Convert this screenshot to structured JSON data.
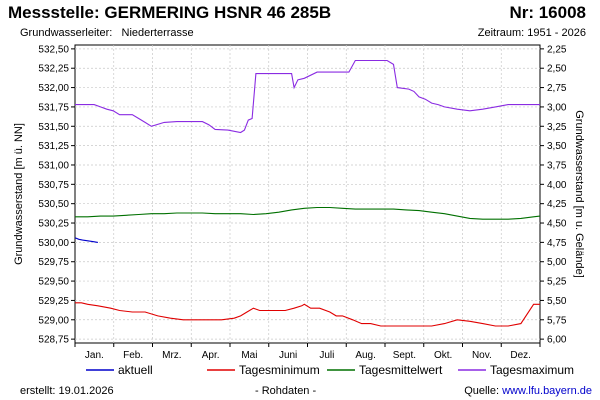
{
  "header": {
    "title": "Messstelle: GERMERING HSNR 46 285B",
    "number": "Nr: 16008",
    "aquifer_label": "Grundwasserleiter:",
    "aquifer_value": "Niederterrasse",
    "period": "Zeitraum: 1951 - 2026"
  },
  "footer": {
    "created": "erstellt:  19.01.2026",
    "note": "- Rohdaten -",
    "source_label": "Quelle:",
    "source_link": "www.lfu.bayern.de"
  },
  "colors": {
    "aktuell": "#0000cc",
    "minimum": "#e00000",
    "mittel": "#007000",
    "maximum": "#8a2be2",
    "grid": "#c8c8c8"
  },
  "chart_data": {
    "type": "line",
    "xlabel": "",
    "ylabel": "Grundwasserstand [m ü. NN]",
    "ylabel_right": "Grundwasserstand [m u. Gelände]",
    "xlim": [
      0,
      365
    ],
    "ylim": [
      528.7,
      532.55
    ],
    "ylim_right": [
      6.05,
      2.2
    ],
    "yticks": [
      "532,50",
      "532,25",
      "532,00",
      "531,75",
      "531,50",
      "531,25",
      "531,00",
      "530,75",
      "530,50",
      "530,25",
      "530,00",
      "529,75",
      "529,50",
      "529,25",
      "529,00",
      "528,75"
    ],
    "yticks_right": [
      "2,25",
      "2,50",
      "2,75",
      "3,00",
      "3,25",
      "3,50",
      "3,75",
      "4,00",
      "4,25",
      "4,50",
      "4,75",
      "5,00",
      "5,25",
      "5,50",
      "5,75",
      "6,00"
    ],
    "months": [
      "Jan.",
      "Feb.",
      "Mrz.",
      "Apr.",
      "Mai",
      "Juni",
      "Juli",
      "Aug.",
      "Sept.",
      "Okt.",
      "Nov.",
      "Dez."
    ],
    "grid": true,
    "legend_position": "bottom",
    "series": [
      {
        "name": "aktuell",
        "x": [
          0,
          3,
          6,
          10,
          14,
          18
        ],
        "y": [
          530.06,
          530.04,
          530.03,
          530.02,
          530.01,
          530.0
        ]
      },
      {
        "name": "Tagesminimum",
        "x": [
          0,
          5,
          10,
          18,
          28,
          35,
          45,
          55,
          65,
          75,
          85,
          95,
          105,
          115,
          125,
          130,
          135,
          140,
          145,
          155,
          165,
          172,
          178,
          180,
          185,
          192,
          200,
          205,
          210,
          218,
          225,
          232,
          240,
          250,
          260,
          270,
          280,
          290,
          300,
          310,
          320,
          330,
          340,
          350,
          360,
          365
        ],
        "y": [
          529.22,
          529.22,
          529.2,
          529.18,
          529.15,
          529.12,
          529.1,
          529.1,
          529.05,
          529.02,
          529.0,
          529.0,
          529.0,
          529.0,
          529.02,
          529.05,
          529.1,
          529.15,
          529.12,
          529.12,
          529.12,
          529.15,
          529.18,
          529.2,
          529.15,
          529.15,
          529.1,
          529.05,
          529.05,
          529.0,
          528.95,
          528.95,
          528.92,
          528.92,
          528.92,
          528.92,
          528.92,
          528.95,
          529.0,
          528.98,
          528.95,
          528.92,
          528.92,
          528.95,
          529.2,
          529.2
        ]
      },
      {
        "name": "Tagesmittelwert",
        "x": [
          0,
          10,
          20,
          30,
          40,
          50,
          60,
          70,
          80,
          90,
          100,
          110,
          120,
          130,
          140,
          150,
          160,
          170,
          180,
          190,
          200,
          210,
          220,
          230,
          240,
          250,
          260,
          270,
          280,
          290,
          300,
          310,
          320,
          330,
          340,
          350,
          360,
          365
        ],
        "y": [
          530.33,
          530.33,
          530.34,
          530.34,
          530.35,
          530.36,
          530.37,
          530.37,
          530.38,
          530.38,
          530.38,
          530.37,
          530.37,
          530.37,
          530.36,
          530.37,
          530.39,
          530.42,
          530.44,
          530.45,
          530.45,
          530.44,
          530.43,
          530.43,
          530.43,
          530.43,
          530.42,
          530.41,
          530.39,
          530.37,
          530.34,
          530.31,
          530.3,
          530.3,
          530.3,
          530.31,
          530.33,
          530.34
        ]
      },
      {
        "name": "Tagesmaximum",
        "x": [
          0,
          15,
          20,
          25,
          30,
          35,
          45,
          50,
          55,
          60,
          70,
          80,
          100,
          105,
          110,
          120,
          130,
          133,
          136,
          139,
          142,
          148,
          170,
          172,
          175,
          180,
          190,
          210,
          215,
          220,
          228,
          245,
          250,
          253,
          262,
          266,
          270,
          275,
          280,
          285,
          290,
          300,
          310,
          320,
          330,
          340,
          350,
          365
        ],
        "y": [
          531.78,
          531.78,
          531.75,
          531.72,
          531.7,
          531.65,
          531.65,
          531.6,
          531.55,
          531.5,
          531.55,
          531.56,
          531.56,
          531.52,
          531.46,
          531.45,
          531.42,
          531.45,
          531.58,
          531.6,
          532.18,
          532.18,
          532.18,
          532.0,
          532.1,
          532.12,
          532.2,
          532.2,
          532.2,
          532.35,
          532.35,
          532.35,
          532.3,
          532.0,
          531.98,
          531.95,
          531.88,
          531.85,
          531.8,
          531.78,
          531.75,
          531.72,
          531.7,
          531.72,
          531.75,
          531.78,
          531.78,
          531.78
        ]
      }
    ]
  }
}
